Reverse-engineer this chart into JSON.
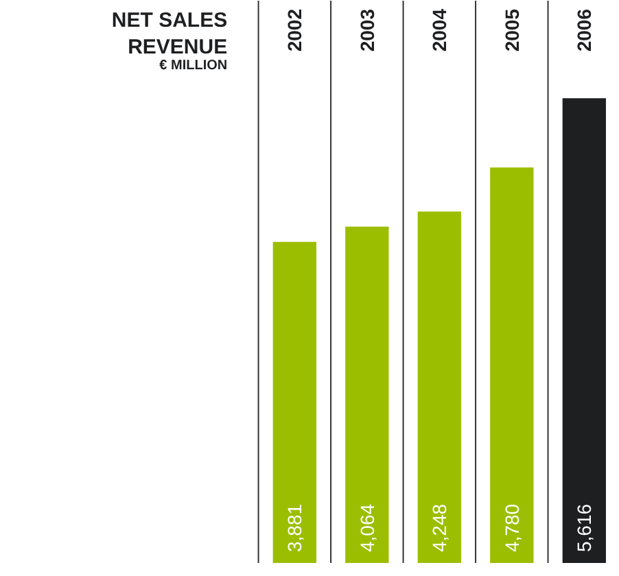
{
  "chart_data": {
    "type": "bar",
    "title": "NET SALES REVENUE",
    "subtitle": "€ MILLION",
    "categories": [
      "2002",
      "2003",
      "2004",
      "2005",
      "2006"
    ],
    "values": [
      3881,
      4064,
      4248,
      4780,
      5616
    ],
    "colors": [
      "#9bbe00",
      "#9bbe00",
      "#9bbe00",
      "#9bbe00",
      "#1e1f21"
    ],
    "value_labels": [
      "3,881",
      "4,064",
      "4,248",
      "4,780",
      "5,616"
    ],
    "grid": "x"
  }
}
